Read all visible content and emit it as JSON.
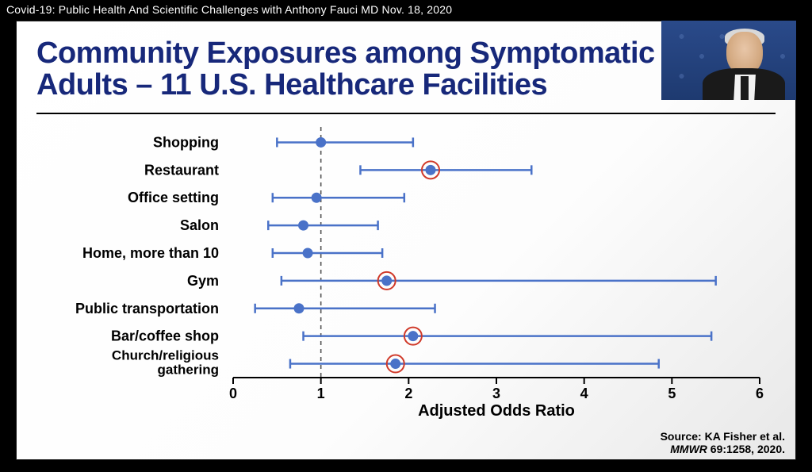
{
  "video_title": "Covid-19: Public Health And Scientific Challenges with Anthony Fauci MD Nov. 18, 2020",
  "slide": {
    "title_line1": "Community Exposures among Symptomatic",
    "title_line2": "Adults – 11 U.S. Healthcare Facilities",
    "title_color": "#17287a",
    "title_fontsize": 38,
    "background_gradient_from": "#ffffff",
    "background_gradient_to": "#e8e8e8",
    "rule_color": "#000000"
  },
  "chart": {
    "type": "forest-plot",
    "x_label": "Adjusted Odds Ratio",
    "xlim": [
      0,
      6
    ],
    "xtick_step": 1,
    "xticks": [
      0,
      1,
      2,
      3,
      4,
      5,
      6
    ],
    "reference_line_at": 1,
    "reference_line_style": "dashed",
    "reference_line_color": "#555555",
    "axis_color": "#000000",
    "whisker_color": "#4a72c8",
    "point_color": "#4a72c8",
    "point_radius": 6,
    "highlight_ring_color": "#d03a2a",
    "highlight_ring_radius": 11,
    "cap_half_height": 6,
    "line_width": 2.5,
    "label_fontsize": 18,
    "categories": [
      {
        "label": "Shopping",
        "point": 1.0,
        "low": 0.5,
        "high": 2.05,
        "highlight": false
      },
      {
        "label": "Restaurant",
        "point": 2.25,
        "low": 1.45,
        "high": 3.4,
        "highlight": true
      },
      {
        "label": "Office setting",
        "point": 0.95,
        "low": 0.45,
        "high": 1.95,
        "highlight": false
      },
      {
        "label": "Salon",
        "point": 0.8,
        "low": 0.4,
        "high": 1.65,
        "highlight": false
      },
      {
        "label": "Home, more than 10",
        "point": 0.85,
        "low": 0.45,
        "high": 1.7,
        "highlight": false
      },
      {
        "label": "Gym",
        "point": 1.75,
        "low": 0.55,
        "high": 5.5,
        "highlight": true
      },
      {
        "label": "Public transportation",
        "point": 0.75,
        "low": 0.25,
        "high": 2.3,
        "highlight": false
      },
      {
        "label": "Bar/coffee shop",
        "point": 2.05,
        "low": 0.8,
        "high": 5.45,
        "highlight": true
      },
      {
        "label": "Church/religious\ngathering",
        "point": 1.85,
        "low": 0.65,
        "high": 4.85,
        "highlight": true
      }
    ]
  },
  "source": {
    "line1": "Source: KA Fisher et al.",
    "line2_em": "MMWR",
    "line2_rest": " 69:1258, 2020."
  },
  "speaker": {
    "name": "Anthony Fauci",
    "background_color": "#2a4a8a"
  }
}
